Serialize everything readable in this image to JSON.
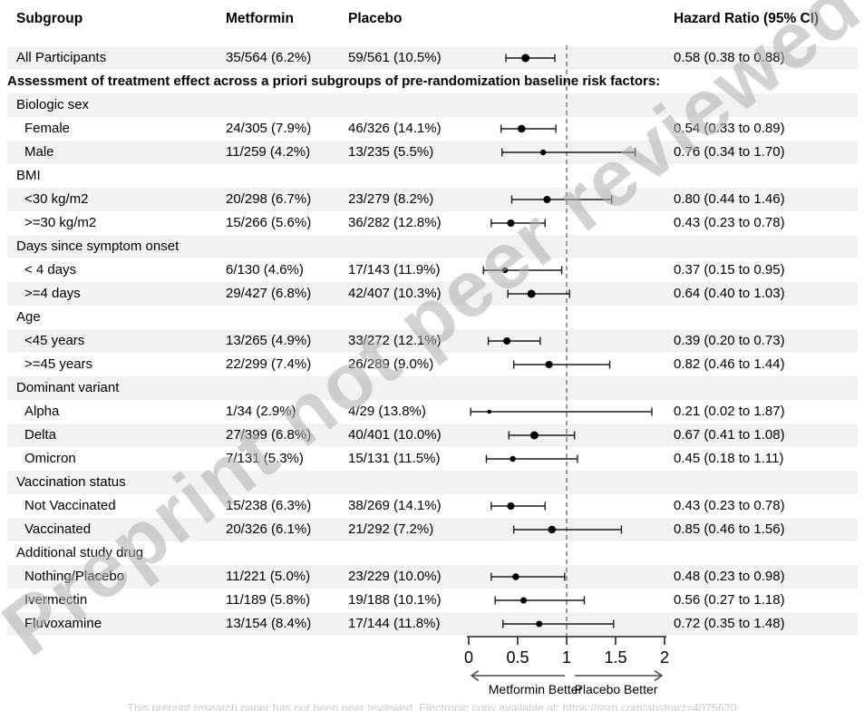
{
  "header": {
    "subgroup": "Subgroup",
    "metformin": "Metformin",
    "placebo": "Placebo",
    "hazard_ratio": "Hazard Ratio (95% CI)"
  },
  "watermark_text": "Preprint not peer reviewed",
  "footer_text": "This preprint research paper has not been peer reviewed. Electronic copy available at: https://ssrn.com/abstract=4075620",
  "colors": {
    "stripe": "#f2f2f2",
    "text": "#000000",
    "reference_dash": "#8f8f8f",
    "ci_line": "#1c1c1c",
    "axis": "#222222",
    "arrow": "#4a4a4a",
    "watermark": "rgba(175,175,175,0.55)",
    "footer": "#c9ccd2"
  },
  "chart_data": {
    "type": "forest",
    "x_axis": {
      "min": 0,
      "max": 2,
      "ticks": [
        0,
        0.5,
        1,
        1.5,
        2
      ],
      "tick_labels": [
        "0",
        "0.5",
        "1",
        "1.5",
        "2"
      ],
      "reference_line": 1,
      "left_direction_label": "Metformin Better",
      "right_direction_label": "Placebo Better"
    },
    "columns": [
      "Subgroup",
      "Metformin",
      "Placebo",
      "Hazard Ratio (95% CI)"
    ],
    "rows": [
      {
        "kind": "data",
        "label": "All Participants",
        "indent": false,
        "shaded": true,
        "metformin": "35/564 (6.2%)",
        "placebo": "59/561 (10.5%)",
        "hr_text": "0.58 (0.38 to 0.88)",
        "hr": 0.58,
        "lo": 0.38,
        "hi": 0.88,
        "dot": 9
      },
      {
        "kind": "note",
        "label": "Assessment of treatment effect across a priori subgroups of pre-randomization baseline risk factors:",
        "shaded": false
      },
      {
        "kind": "group",
        "label": "Biologic sex",
        "shaded": true
      },
      {
        "kind": "data",
        "label": "Female",
        "indent": true,
        "shaded": false,
        "metformin": "24/305 (7.9%)",
        "placebo": "46/326 (14.1%)",
        "hr_text": "0.54 (0.33 to 0.89)",
        "hr": 0.54,
        "lo": 0.33,
        "hi": 0.89,
        "dot": 8.5
      },
      {
        "kind": "data",
        "label": "Male",
        "indent": true,
        "shaded": true,
        "metformin": "11/259 (4.2%)",
        "placebo": "13/235 (5.5%)",
        "hr_text": "0.76 (0.34 to 1.70)",
        "hr": 0.76,
        "lo": 0.34,
        "hi": 1.7,
        "dot": 6.5
      },
      {
        "kind": "group",
        "label": "BMI",
        "shaded": false
      },
      {
        "kind": "data",
        "label": "<30 kg/m2",
        "indent": true,
        "shaded": true,
        "metformin": "20/298 (6.7%)",
        "placebo": "23/279 (8.2%)",
        "hr_text": "0.80 (0.44 to 1.46)",
        "hr": 0.8,
        "lo": 0.44,
        "hi": 1.46,
        "dot": 8
      },
      {
        "kind": "data",
        "label": ">=30 kg/m2",
        "indent": true,
        "shaded": false,
        "metformin": "15/266 (5.6%)",
        "placebo": "36/282 (12.8%)",
        "hr_text": "0.43 (0.23 to 0.78)",
        "hr": 0.43,
        "lo": 0.23,
        "hi": 0.78,
        "dot": 8
      },
      {
        "kind": "group",
        "label": "Days since symptom onset",
        "shaded": true
      },
      {
        "kind": "data",
        "label": "< 4 days",
        "indent": true,
        "shaded": false,
        "metformin": "6/130 (4.6%)",
        "placebo": "17/143 (11.9%)",
        "hr_text": "0.37 (0.15 to 0.95)",
        "hr": 0.37,
        "lo": 0.15,
        "hi": 0.95,
        "dot": 6.5
      },
      {
        "kind": "data",
        "label": ">=4 days",
        "indent": true,
        "shaded": true,
        "metformin": "29/427 (6.8%)",
        "placebo": "42/407 (10.3%)",
        "hr_text": "0.64 (0.40 to 1.03)",
        "hr": 0.64,
        "lo": 0.4,
        "hi": 1.03,
        "dot": 9
      },
      {
        "kind": "group",
        "label": "Age",
        "shaded": false
      },
      {
        "kind": "data",
        "label": "<45 years",
        "indent": true,
        "shaded": true,
        "metformin": "13/265 (4.9%)",
        "placebo": "33/272 (12.1%)",
        "hr_text": "0.39 (0.20 to 0.73)",
        "hr": 0.39,
        "lo": 0.2,
        "hi": 0.73,
        "dot": 8
      },
      {
        "kind": "data",
        "label": ">=45 years",
        "indent": true,
        "shaded": false,
        "metformin": "22/299 (7.4%)",
        "placebo": "26/289 (9.0%)",
        "hr_text": "0.82 (0.46 to 1.44)",
        "hr": 0.82,
        "lo": 0.46,
        "hi": 1.44,
        "dot": 8
      },
      {
        "kind": "group",
        "label": "Dominant variant",
        "shaded": true
      },
      {
        "kind": "data",
        "label": "Alpha",
        "indent": true,
        "shaded": false,
        "metformin": "1/34 (2.9%)",
        "placebo": "4/29 (13.8%)",
        "hr_text": "0.21 (0.02 to 1.87)",
        "hr": 0.21,
        "lo": 0.02,
        "hi": 1.87,
        "dot": 4.5
      },
      {
        "kind": "data",
        "label": "Delta",
        "indent": true,
        "shaded": true,
        "metformin": "27/399 (6.8%)",
        "placebo": "40/401 (10.0%)",
        "hr_text": "0.67 (0.41 to 1.08)",
        "hr": 0.67,
        "lo": 0.41,
        "hi": 1.08,
        "dot": 9
      },
      {
        "kind": "data",
        "label": "Omicron",
        "indent": true,
        "shaded": false,
        "metformin": "7/131 (5.3%)",
        "placebo": "15/131 (11.5%)",
        "hr_text": "0.45 (0.18 to 1.11)",
        "hr": 0.45,
        "lo": 0.18,
        "hi": 1.11,
        "dot": 6.5
      },
      {
        "kind": "group",
        "label": "Vaccination status",
        "shaded": true
      },
      {
        "kind": "data",
        "label": "Not Vaccinated",
        "indent": true,
        "shaded": false,
        "metformin": "15/238 (6.3%)",
        "placebo": "38/269 (14.1%)",
        "hr_text": "0.43 (0.23 to 0.78)",
        "hr": 0.43,
        "lo": 0.23,
        "hi": 0.78,
        "dot": 8
      },
      {
        "kind": "data",
        "label": "Vaccinated",
        "indent": true,
        "shaded": true,
        "metformin": "20/326 (6.1%)",
        "placebo": "21/292 (7.2%)",
        "hr_text": "0.85 (0.46 to 1.56)",
        "hr": 0.85,
        "lo": 0.46,
        "hi": 1.56,
        "dot": 8.5
      },
      {
        "kind": "group",
        "label": "Additional study drug",
        "shaded": false
      },
      {
        "kind": "data",
        "label": "Nothing/Placebo",
        "indent": true,
        "shaded": true,
        "metformin": "11/221 (5.0%)",
        "placebo": "23/229 (10.0%)",
        "hr_text": "0.48 (0.23 to 0.98)",
        "hr": 0.48,
        "lo": 0.23,
        "hi": 0.98,
        "dot": 7.5
      },
      {
        "kind": "data",
        "label": "Ivermectin",
        "indent": true,
        "shaded": false,
        "metformin": "11/189 (5.8%)",
        "placebo": "19/188 (10.1%)",
        "hr_text": "0.56 (0.27 to 1.18)",
        "hr": 0.56,
        "lo": 0.27,
        "hi": 1.18,
        "dot": 7
      },
      {
        "kind": "data",
        "label": "Fluvoxamine",
        "indent": true,
        "shaded": true,
        "metformin": "13/154 (8.4%)",
        "placebo": "17/144 (11.8%)",
        "hr_text": "0.72 (0.35 to 1.48)",
        "hr": 0.72,
        "lo": 0.35,
        "hi": 1.48,
        "dot": 7
      }
    ]
  }
}
